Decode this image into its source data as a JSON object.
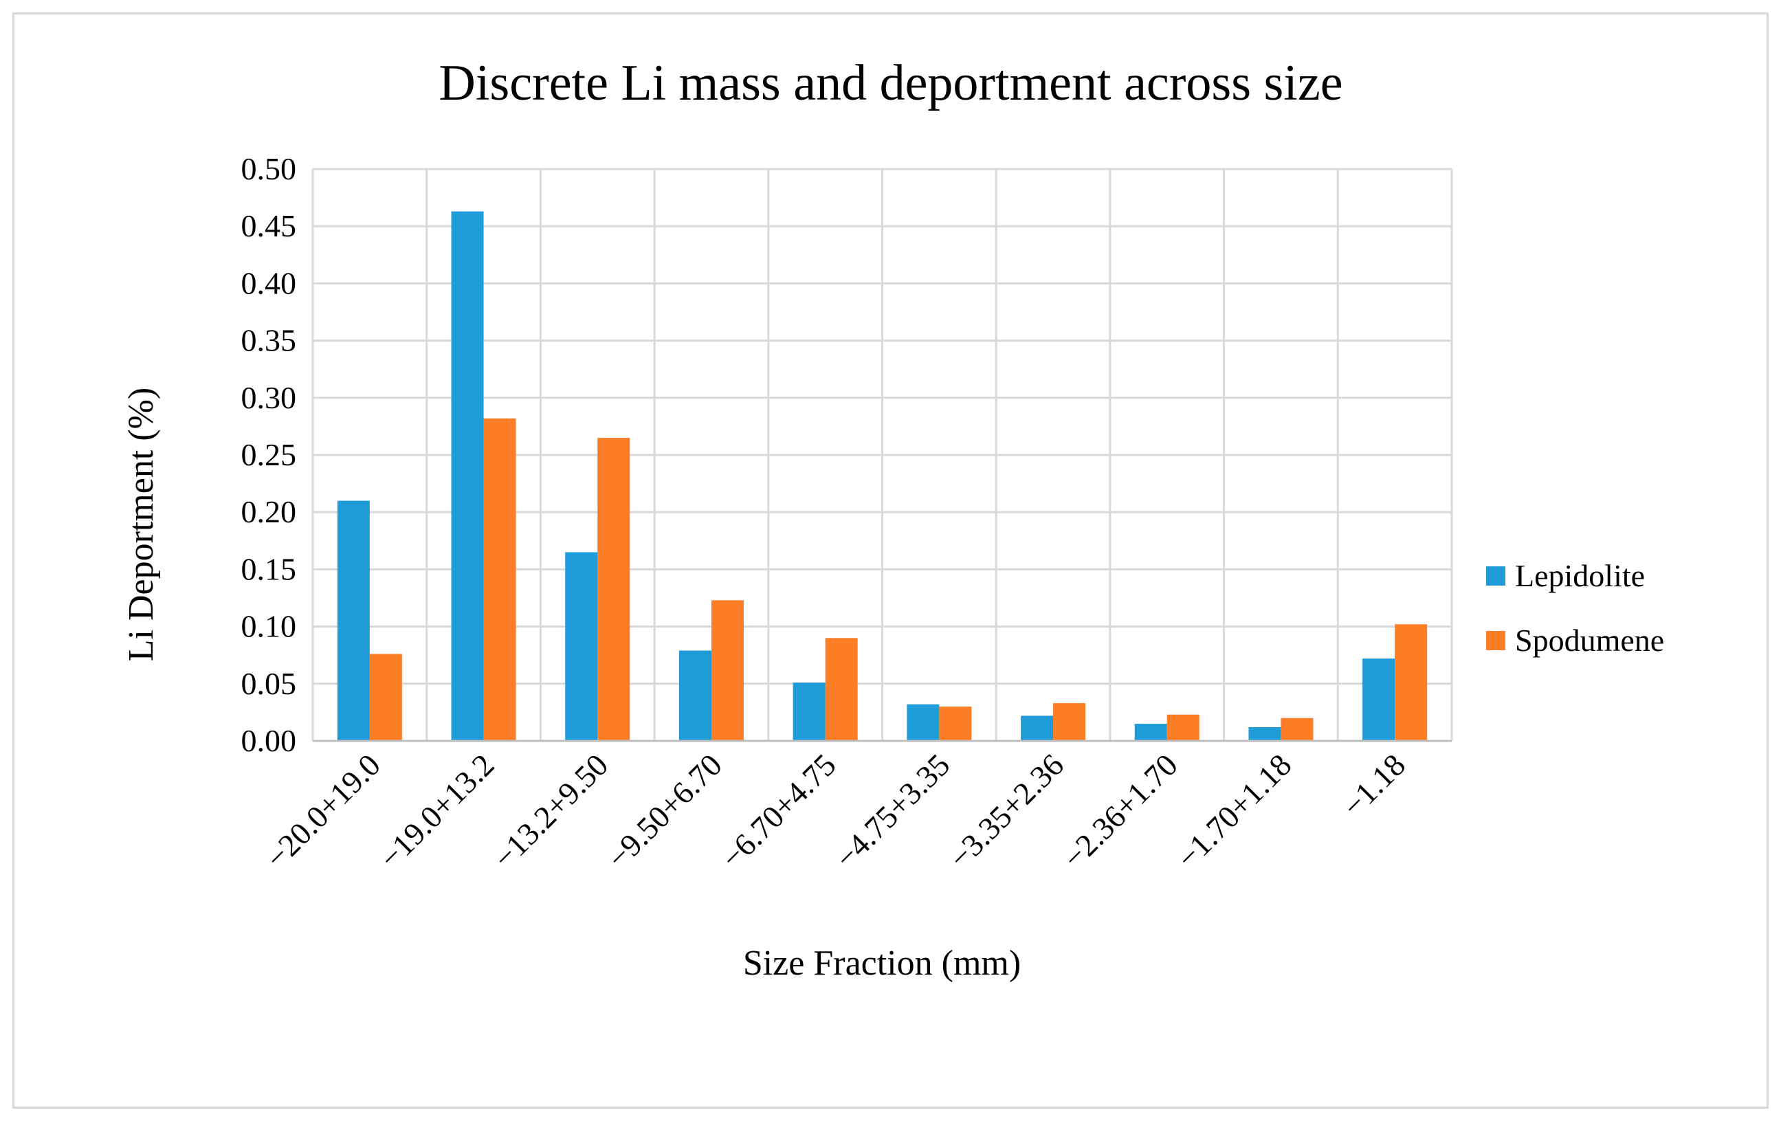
{
  "chart_data": {
    "type": "bar",
    "title": "Discrete Li mass and deportment across size",
    "xlabel": "Size Fraction (mm)",
    "ylabel": "Li Deportment (%)",
    "ylim": [
      0,
      0.5
    ],
    "yticks": [
      "0.00",
      "0.05",
      "0.10",
      "0.15",
      "0.20",
      "0.25",
      "0.30",
      "0.35",
      "0.40",
      "0.45",
      "0.50"
    ],
    "categories": [
      "−20.0+19.0",
      "−19.0+13.2",
      "−13.2+9.50",
      "−9.50+6.70",
      "−6.70+4.75",
      "−4.75+3.35",
      "−3.35+2.36",
      "−2.36+1.70",
      "−1.70+1.18",
      "−1.18"
    ],
    "series": [
      {
        "name": "Lepidolite",
        "color": "#1f9bd7",
        "values": [
          0.21,
          0.463,
          0.165,
          0.079,
          0.051,
          0.032,
          0.022,
          0.015,
          0.012,
          0.072
        ]
      },
      {
        "name": "Spodumene",
        "color": "#fd7e26",
        "values": [
          0.076,
          0.282,
          0.265,
          0.123,
          0.09,
          0.03,
          0.033,
          0.023,
          0.02,
          0.102
        ]
      }
    ],
    "grid": true,
    "legend_position": "right"
  }
}
